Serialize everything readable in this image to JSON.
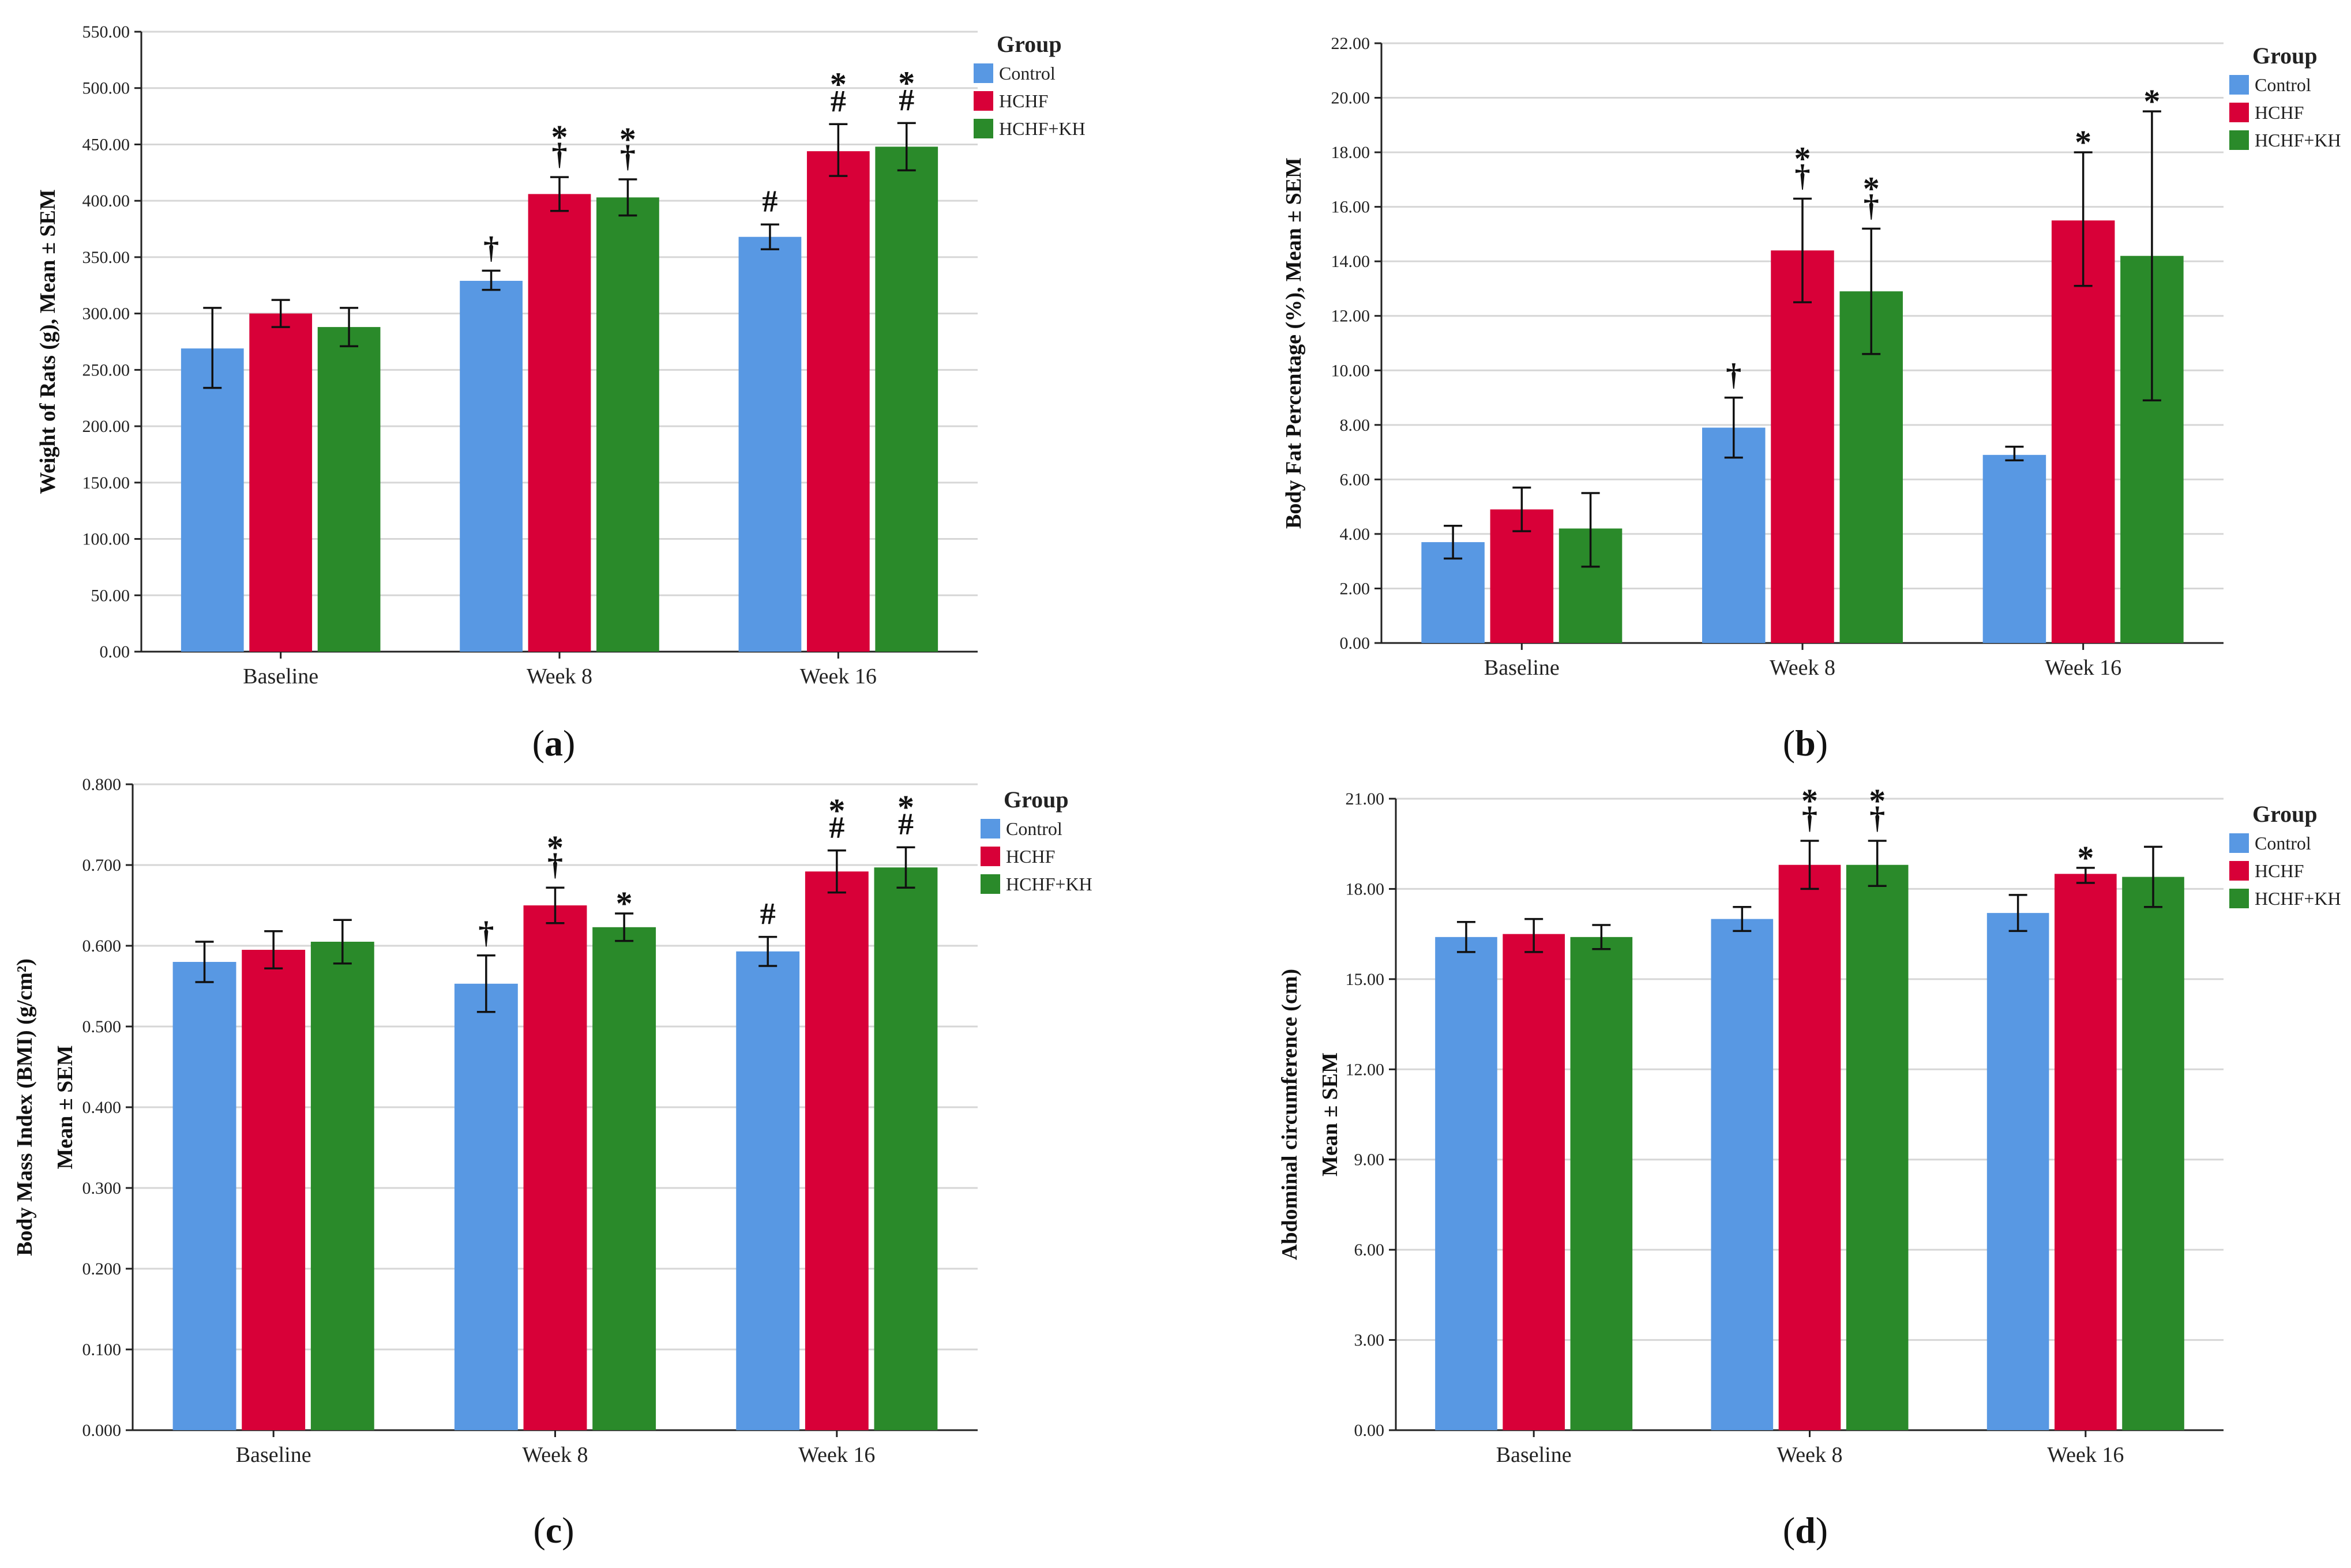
{
  "figure": {
    "colors": {
      "control": "#5898e3",
      "hchf": "#d80038",
      "hchf_kh": "#2a8a2a",
      "grid": "#d6d6d6",
      "axis": "#222222"
    }
  },
  "chart_data": [
    {
      "id": "a",
      "panel_label": "a",
      "type": "bar",
      "ylabel": "Weight of Rats (g), Mean ± SEM",
      "ylim": [
        0,
        550
      ],
      "ytick_step": 50,
      "ytick_decimals": 2,
      "categories": [
        "Baseline",
        "Week 8",
        "Week 16"
      ],
      "legend_title": "Group",
      "series": [
        {
          "name": "Control",
          "values": [
            269,
            329,
            368
          ],
          "err_low": [
            234,
            321,
            357
          ],
          "err_high": [
            305,
            338,
            379
          ],
          "annotations": [
            [],
            [
              "†"
            ],
            [
              "#"
            ]
          ]
        },
        {
          "name": "HCHF",
          "values": [
            300,
            406,
            444
          ],
          "err_low": [
            288,
            391,
            422
          ],
          "err_high": [
            312,
            421,
            468
          ],
          "annotations": [
            [],
            [
              "*",
              "†"
            ],
            [
              "*",
              "#"
            ]
          ]
        },
        {
          "name": "HCHF+KH",
          "values": [
            288,
            403,
            448
          ],
          "err_low": [
            271,
            387,
            427
          ],
          "err_high": [
            305,
            419,
            469
          ],
          "annotations": [
            [],
            [
              "*",
              "†"
            ],
            [
              "*",
              "#"
            ]
          ]
        }
      ]
    },
    {
      "id": "b",
      "panel_label": "b",
      "type": "bar",
      "ylabel": "Body Fat Percentage (%), Mean ± SEM",
      "ylim": [
        0,
        22
      ],
      "ytick_step": 2,
      "ytick_decimals": 2,
      "categories": [
        "Baseline",
        "Week 8",
        "Week 16"
      ],
      "legend_title": "Group",
      "series": [
        {
          "name": "Control",
          "values": [
            3.7,
            7.9,
            6.9
          ],
          "err_low": [
            3.1,
            6.8,
            6.7
          ],
          "err_high": [
            4.3,
            9.0,
            7.2
          ],
          "annotations": [
            [],
            [
              "†"
            ],
            []
          ]
        },
        {
          "name": "HCHF",
          "values": [
            4.9,
            14.4,
            15.5
          ],
          "err_low": [
            4.1,
            12.5,
            13.1
          ],
          "err_high": [
            5.7,
            16.3,
            18.0
          ],
          "annotations": [
            [],
            [
              "*",
              "†"
            ],
            [
              "*"
            ]
          ]
        },
        {
          "name": "HCHF+KH",
          "values": [
            4.2,
            12.9,
            14.2
          ],
          "err_low": [
            2.8,
            10.6,
            8.9
          ],
          "err_high": [
            5.5,
            15.2,
            19.5
          ],
          "annotations": [
            [],
            [
              "*",
              "†"
            ],
            [
              "*"
            ]
          ]
        }
      ]
    },
    {
      "id": "c",
      "panel_label": "c",
      "type": "bar",
      "ylabel": "Body Mass Index (BMI) (g/cm²)",
      "ylabel2": "Mean ± SEM",
      "ylim": [
        0,
        0.8
      ],
      "ytick_step": 0.1,
      "ytick_decimals": 3,
      "categories": [
        "Baseline",
        "Week 8",
        "Week 16"
      ],
      "legend_title": "Group",
      "series": [
        {
          "name": "Control",
          "values": [
            0.58,
            0.553,
            0.593
          ],
          "err_low": [
            0.555,
            0.518,
            0.575
          ],
          "err_high": [
            0.605,
            0.588,
            0.611
          ],
          "annotations": [
            [],
            [
              "†"
            ],
            [
              "#"
            ]
          ]
        },
        {
          "name": "HCHF",
          "values": [
            0.595,
            0.65,
            0.692
          ],
          "err_low": [
            0.572,
            0.628,
            0.666
          ],
          "err_high": [
            0.618,
            0.672,
            0.718
          ],
          "annotations": [
            [],
            [
              "*",
              "†"
            ],
            [
              "*",
              "#"
            ]
          ]
        },
        {
          "name": "HCHF+KH",
          "values": [
            0.605,
            0.623,
            0.697
          ],
          "err_low": [
            0.578,
            0.606,
            0.672
          ],
          "err_high": [
            0.632,
            0.64,
            0.722
          ],
          "annotations": [
            [],
            [
              "*"
            ],
            [
              "*",
              "#"
            ]
          ]
        }
      ]
    },
    {
      "id": "d",
      "panel_label": "d",
      "type": "bar",
      "ylabel": "Abdominal circumference (cm)",
      "ylabel2": "Mean ± SEM",
      "ylim": [
        0,
        21
      ],
      "ytick_step": 3,
      "ytick_decimals": 2,
      "categories": [
        "Baseline",
        "Week 8",
        "Week 16"
      ],
      "legend_title": "Group",
      "series": [
        {
          "name": "Control",
          "values": [
            16.4,
            17.0,
            17.2
          ],
          "err_low": [
            15.9,
            16.6,
            16.6
          ],
          "err_high": [
            16.9,
            17.4,
            17.8
          ],
          "annotations": [
            [],
            [],
            []
          ]
        },
        {
          "name": "HCHF",
          "values": [
            16.5,
            18.8,
            18.5
          ],
          "err_low": [
            15.9,
            18.0,
            18.2
          ],
          "err_high": [
            17.0,
            19.6,
            18.7
          ],
          "annotations": [
            [],
            [
              "*",
              "†"
            ],
            [
              "*"
            ]
          ]
        },
        {
          "name": "HCHF+KH",
          "values": [
            16.4,
            18.8,
            18.4
          ],
          "err_low": [
            16.0,
            18.1,
            17.4
          ],
          "err_high": [
            16.8,
            19.6,
            19.4
          ],
          "annotations": [
            [],
            [
              "*",
              "†"
            ],
            []
          ]
        }
      ]
    }
  ]
}
